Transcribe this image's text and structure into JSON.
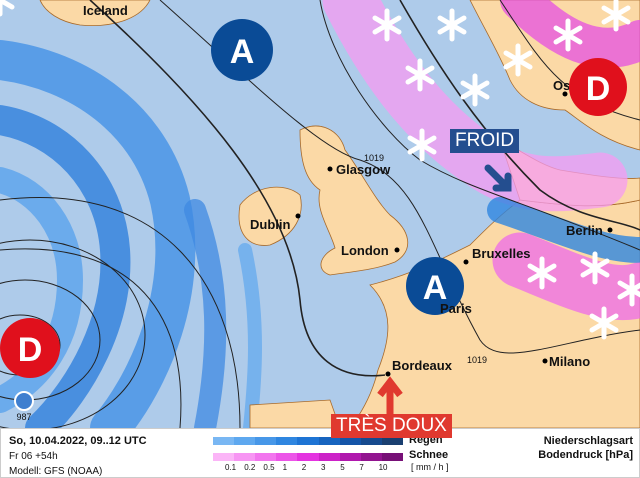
{
  "map": {
    "cities": [
      {
        "name": "Iceland"
      },
      {
        "name": "Glasgow"
      },
      {
        "name": "Dublin"
      },
      {
        "name": "London"
      },
      {
        "name": "Bruxelles"
      },
      {
        "name": "Paris"
      },
      {
        "name": "Berlin"
      },
      {
        "name": "Bordeaux"
      },
      {
        "name": "Milano"
      },
      {
        "name": "Oslo"
      }
    ],
    "isobars": {
      "a": "1019",
      "b": "1019",
      "c": "987"
    },
    "high_label": "A",
    "low_label": "D",
    "annotations": {
      "cold": "FROID",
      "warm": "TRÈS DOUX"
    },
    "colors": {
      "sea": "#aecbea",
      "land": "#fbd9a6",
      "high": "#0a4b96",
      "low": "#e0101c",
      "cold_tag": "#244e8f",
      "warm_tag": "#e0392f"
    }
  },
  "footer": {
    "date": "So, 10.04.2022, 09..12 UTC",
    "run": "Fr 06 +54h",
    "model": "Modell: GFS (NOAA)",
    "rain_label": "Regen",
    "snow_label": "Schnee",
    "unit": "[ mm / h ]",
    "ticks": [
      "0.1",
      "0.2",
      "0.5",
      "1",
      "2",
      "3",
      "5",
      "7",
      "10"
    ],
    "title1": "Niederschlagsart",
    "title2": "Bodendruck [hPa]",
    "rain_colors": [
      "#79b7f3",
      "#5ea8ef",
      "#4797e8",
      "#2f86e0",
      "#1e74d4",
      "#1764bf",
      "#1455a8",
      "#164a8e",
      "#1a3f70"
    ],
    "snow_colors": [
      "#fbb5f7",
      "#f795f3",
      "#f275ee",
      "#ec55e8",
      "#e433e0",
      "#cc22c8",
      "#b018ad",
      "#921490",
      "#771077"
    ]
  }
}
